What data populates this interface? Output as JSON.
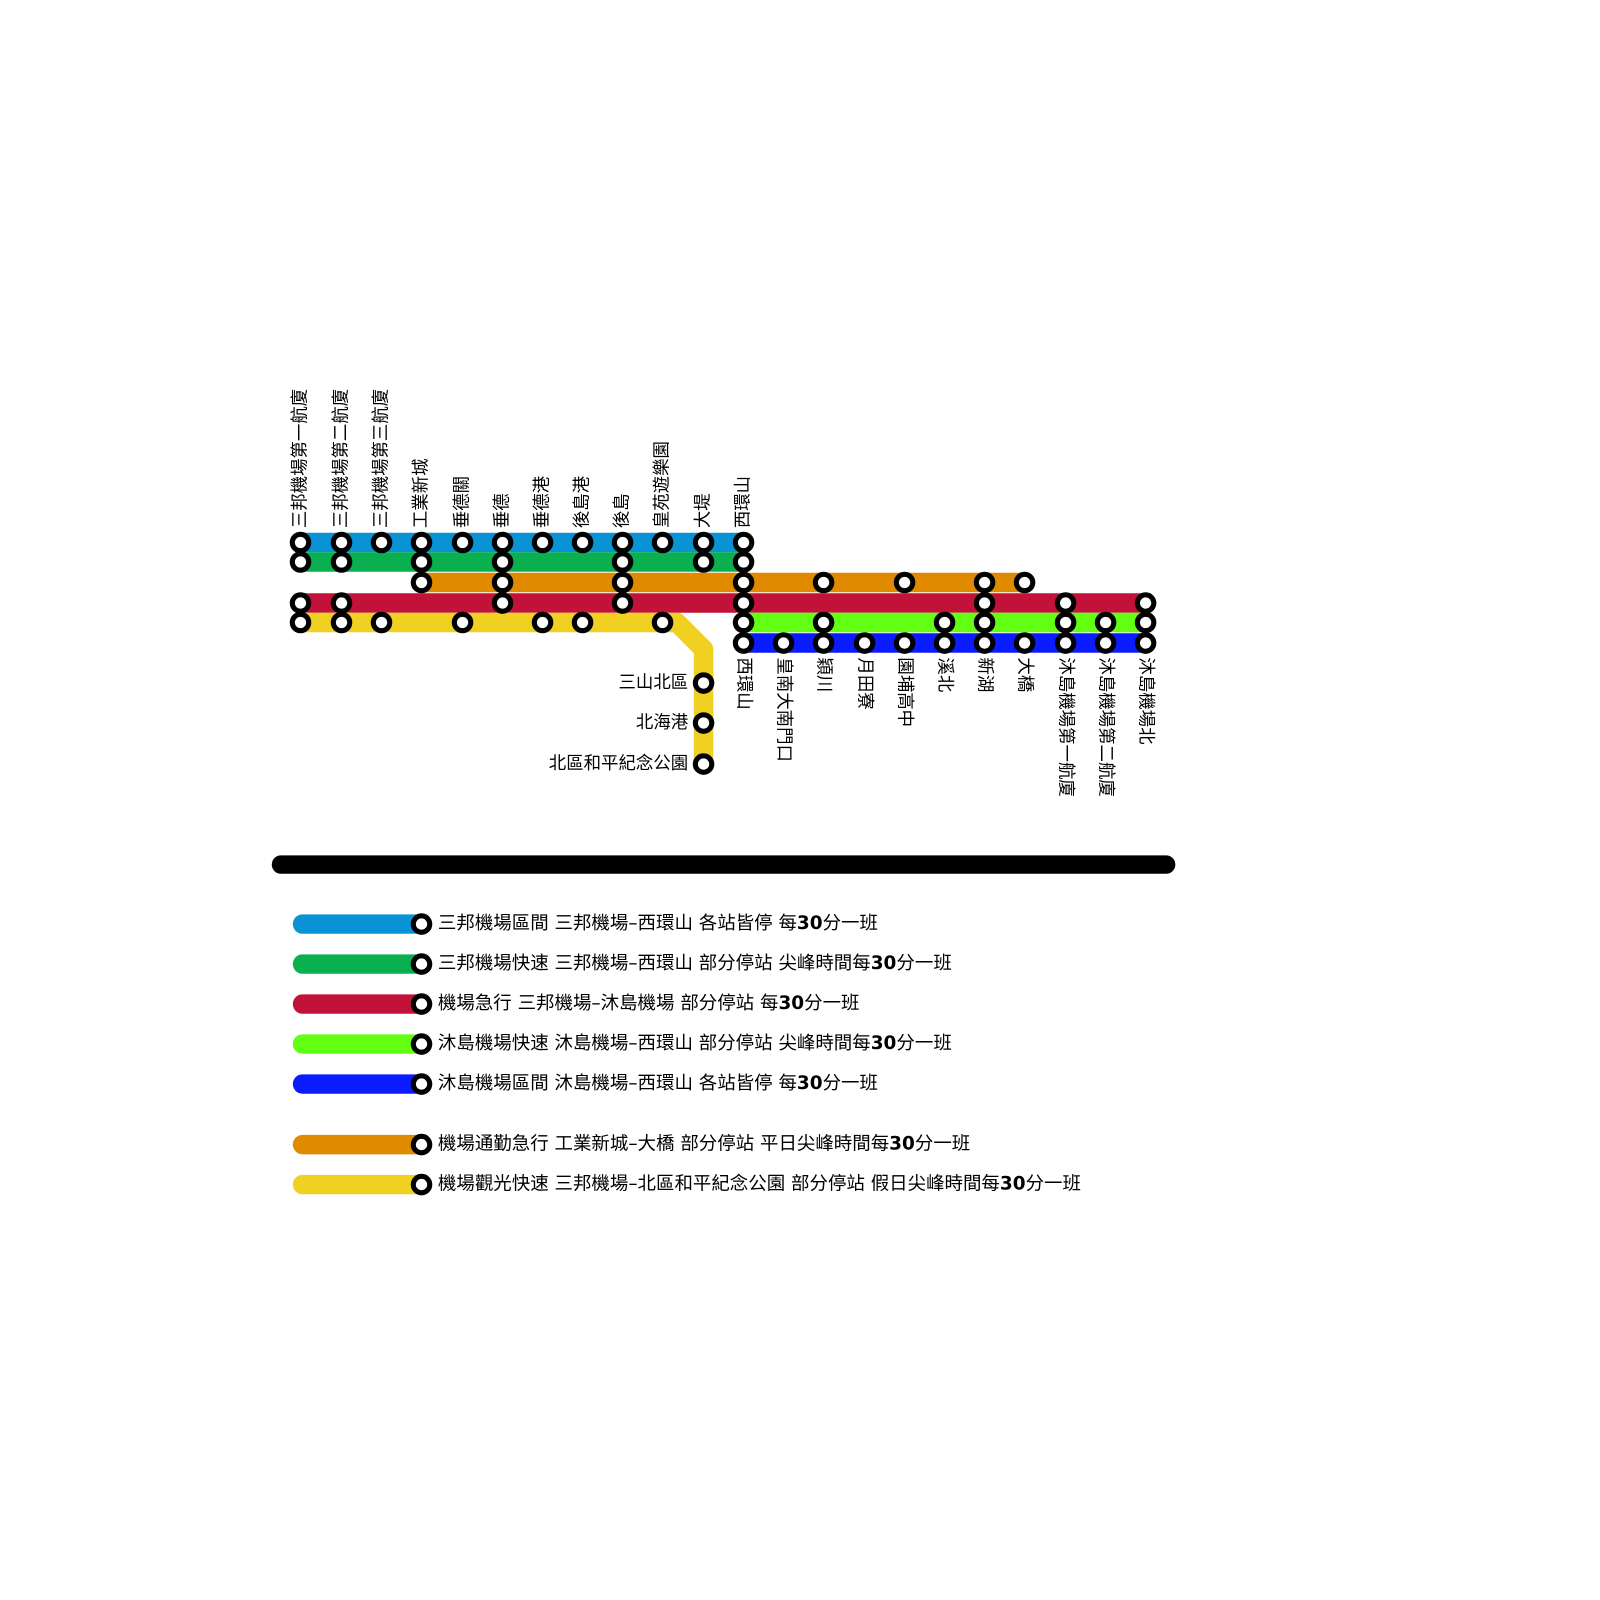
{
  "stations_top": [
    "三邦機場第一航廈",
    "三邦機場第二航廈",
    "三邦機場第三航廈",
    "工業新城",
    "垂德關",
    "垂德",
    "垂德港",
    "後島港",
    "後島",
    "皇苑遊樂園",
    "大堤",
    "西環山"
  ],
  "stations_bottom": [
    "西環山",
    "皇南大南門口",
    "穎川",
    "月田寮",
    "園埔高中",
    "溪北",
    "新湖",
    "大橋",
    "沐島機場第一航廈",
    "沐島機場第二航廈",
    "沐島機場北"
  ],
  "stations_branch": [
    "三山北區",
    "北海港",
    "北區和平紀念公園"
  ],
  "legend": [
    {
      "color": "#0a93d4",
      "text": [
        "三邦機場區間 三邦機場–西環山 各站皆停 每",
        "30",
        "分一班"
      ]
    },
    {
      "color": "#0ab050",
      "text": [
        "三邦機場快速 三邦機場–西環山 部分停站 尖峰時間每",
        "30",
        "分一班"
      ]
    },
    {
      "color": "#c2123a",
      "text": [
        "機場急行 三邦機場–沐島機場 部分停站 每",
        "30",
        "分一班"
      ]
    },
    {
      "color": "#62ff12",
      "text": [
        "沐島機場快速 沐島機場–西環山 部分停站 尖峰時間每",
        "30",
        "分一班"
      ]
    },
    {
      "color": "#0a1cff",
      "text": [
        "沐島機場區間 沐島機場–西環山 各站皆停 每",
        "30",
        "分一班"
      ]
    },
    {
      "color": "#e08a00",
      "text": [
        "機場通勤急行 工業新城–大橋 部分停站 平日尖峰時間每",
        "30",
        "分一班"
      ]
    },
    {
      "color": "#f0d020",
      "text": [
        "機場觀光快速 三邦機場–北區和平紀念公園 部分停站 假日尖峰時間每",
        "30",
        "分一班"
      ]
    }
  ]
}
